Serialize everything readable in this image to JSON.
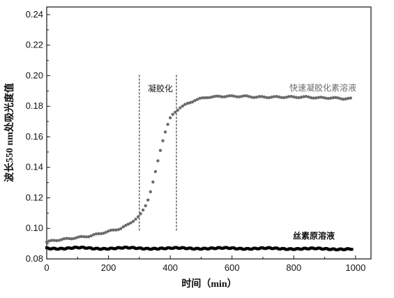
{
  "chart_data": {
    "type": "scatter",
    "title": "",
    "xlabel": "时间（min）",
    "ylabel": "波长550 nm处吸光度值",
    "xlim": [
      0,
      1050
    ],
    "ylim": [
      0.08,
      0.245
    ],
    "x_ticks": [
      "0",
      "200",
      "400",
      "600",
      "800",
      "1000"
    ],
    "y_ticks": [
      "0.08",
      "0.10",
      "0.12",
      "0.14",
      "0.16",
      "0.18",
      "0.20",
      "0.22",
      "0.24"
    ],
    "grid": false,
    "series": [
      {
        "name": "快速凝胶化素溶液",
        "color": "#6b6b6b",
        "marker": "circle",
        "x": [
          0,
          20,
          40,
          60,
          80,
          100,
          120,
          140,
          160,
          180,
          200,
          220,
          240,
          260,
          280,
          300,
          310,
          320,
          330,
          340,
          350,
          360,
          370,
          380,
          390,
          400,
          410,
          420,
          430,
          440,
          450,
          460,
          470,
          480,
          490,
          500,
          520,
          540,
          560,
          580,
          600,
          640,
          680,
          720,
          760,
          800,
          840,
          880,
          920,
          960,
          990
        ],
        "y": [
          0.091,
          0.092,
          0.0925,
          0.093,
          0.0935,
          0.094,
          0.0945,
          0.095,
          0.096,
          0.097,
          0.098,
          0.099,
          0.1,
          0.102,
          0.105,
          0.108,
          0.111,
          0.115,
          0.12,
          0.127,
          0.135,
          0.144,
          0.153,
          0.161,
          0.167,
          0.172,
          0.175,
          0.177,
          0.179,
          0.18,
          0.181,
          0.182,
          0.183,
          0.184,
          0.1845,
          0.185,
          0.186,
          0.186,
          0.1865,
          0.1865,
          0.1865,
          0.1865,
          0.186,
          0.186,
          0.186,
          0.186,
          0.186,
          0.1855,
          0.1855,
          0.185,
          0.185
        ]
      },
      {
        "name": "丝素原溶液",
        "color": "#000000",
        "marker": "square",
        "x": [
          0,
          50,
          100,
          150,
          200,
          250,
          300,
          350,
          400,
          450,
          500,
          550,
          600,
          650,
          700,
          750,
          800,
          850,
          900,
          950,
          990
        ],
        "y": [
          0.087,
          0.087,
          0.0872,
          0.0868,
          0.087,
          0.0871,
          0.0869,
          0.087,
          0.0868,
          0.087,
          0.087,
          0.0868,
          0.087,
          0.0869,
          0.0868,
          0.0867,
          0.0868,
          0.0866,
          0.0865,
          0.0866,
          0.0865
        ]
      }
    ],
    "annotations": {
      "gel_label": "凝胶化",
      "gel_start_x": 300,
      "gel_end_x": 420,
      "fast_label": "快速凝胶化素溶液",
      "raw_label": "丝素原溶液"
    }
  }
}
